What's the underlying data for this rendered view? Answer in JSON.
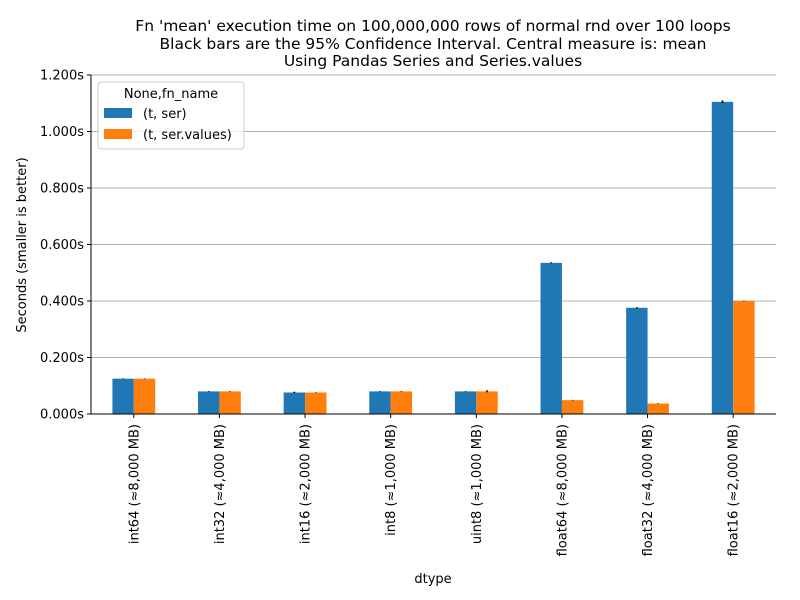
{
  "chart_data": {
    "type": "bar",
    "title": [
      "Fn 'mean' execution time on 100,000,000 rows of normal rnd over 100 loops",
      "Black bars are the 95% Confidence Interval. Central measure is: mean",
      "Using Pandas Series and Series.values"
    ],
    "xlabel": "dtype",
    "ylabel": "Seconds (smaller is better)",
    "categories": [
      "int64 (≈8,000 MB)",
      "int32 (≈4,000 MB)",
      "int16 (≈2,000 MB)",
      "int8 (≈1,000 MB)",
      "uint8 (≈1,000 MB)",
      "float64 (≈8,000 MB)",
      "float32 (≈4,000 MB)",
      "float16 (≈2,000 MB)"
    ],
    "series": [
      {
        "name": "(t, ser)",
        "color": "#1f77b4",
        "values": [
          0.125,
          0.08,
          0.076,
          0.08,
          0.08,
          0.535,
          0.376,
          1.105
        ],
        "ci": [
          [
            0.124,
            0.126
          ],
          [
            0.079,
            0.081
          ],
          [
            0.074,
            0.079
          ],
          [
            0.079,
            0.081
          ],
          [
            0.079,
            0.081
          ],
          [
            0.533,
            0.537
          ],
          [
            0.374,
            0.378
          ],
          [
            1.1,
            1.11
          ]
        ]
      },
      {
        "name": "(t, ser.values)",
        "color": "#ff7f0e",
        "values": [
          0.125,
          0.08,
          0.076,
          0.08,
          0.08,
          0.049,
          0.037,
          0.4
        ],
        "ci": [
          [
            0.124,
            0.126
          ],
          [
            0.079,
            0.081
          ],
          [
            0.075,
            0.077
          ],
          [
            0.079,
            0.081
          ],
          [
            0.077,
            0.084
          ],
          [
            0.048,
            0.05
          ],
          [
            0.036,
            0.038
          ],
          [
            0.399,
            0.401
          ]
        ]
      }
    ],
    "legend": {
      "title": "None,fn_name",
      "placement": "top-left"
    },
    "yticks": [
      0.0,
      0.2,
      0.4,
      0.6,
      0.8,
      1.0,
      1.2
    ],
    "ytick_labels": [
      "0.000s",
      "0.200s",
      "0.400s",
      "0.600s",
      "0.800s",
      "1.000s",
      "1.200s"
    ],
    "ylim": [
      0,
      1.2
    ],
    "grid": "horizontal",
    "error_bar_color": "#000000"
  }
}
